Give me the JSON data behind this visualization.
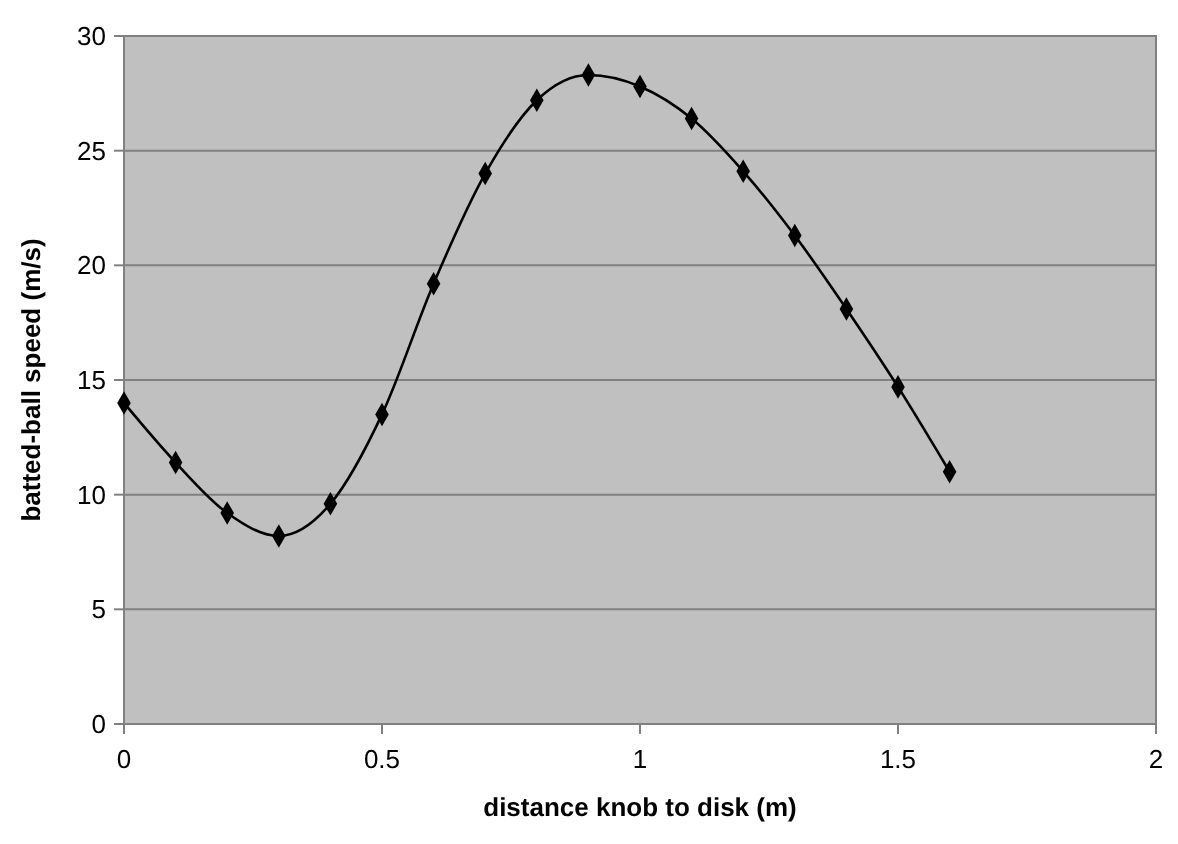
{
  "chart_data": {
    "type": "line",
    "xlabel": "distance knob to disk (m)",
    "ylabel": "batted-ball speed (m/s)",
    "x": [
      0,
      0.1,
      0.2,
      0.3,
      0.4,
      0.5,
      0.6,
      0.7,
      0.8,
      0.9,
      1,
      1.1,
      1.2,
      1.3,
      1.4,
      1.5,
      1.6
    ],
    "series": [
      {
        "color": "#000000",
        "values": [
          14,
          11.4,
          9.2,
          8.2,
          9.6,
          13.5,
          19.2,
          24,
          27.2,
          28.3,
          27.8,
          26.4,
          24.1,
          21.3,
          18.1,
          14.7,
          11
        ]
      }
    ],
    "xlim": [
      0,
      2
    ],
    "xticks": [
      0,
      0.5,
      1,
      1.5,
      2
    ],
    "ylim": [
      0,
      30
    ],
    "yticks": [
      0,
      5,
      10,
      15,
      20,
      25,
      30
    ],
    "grid": "y",
    "marker": "diamond",
    "line_style": "solid"
  }
}
